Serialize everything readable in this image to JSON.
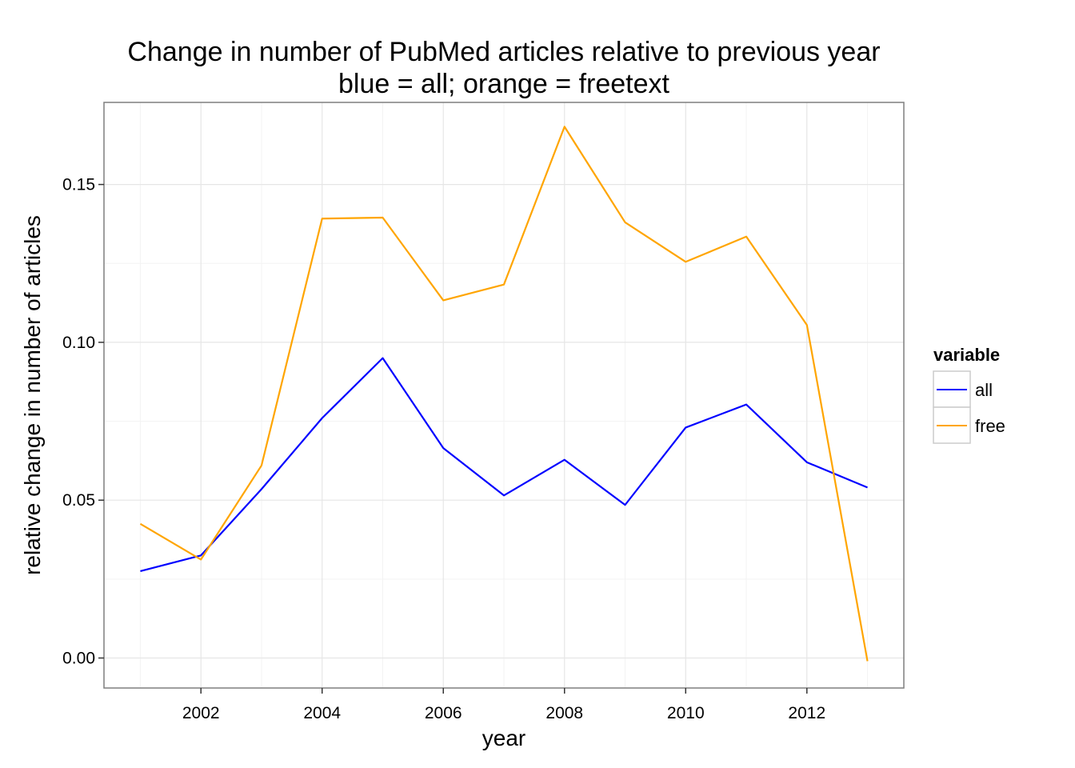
{
  "chart_data": {
    "type": "line",
    "title": "Change in number of PubMed articles relative to previous year",
    "subtitle": "blue = all; orange = freetext",
    "xlabel": "year",
    "ylabel": "relative change in number of articles",
    "x": [
      2001,
      2002,
      2003,
      2004,
      2005,
      2006,
      2007,
      2008,
      2009,
      2010,
      2011,
      2012,
      2013
    ],
    "xlim": [
      2000.4,
      2013.6
    ],
    "ylim": [
      -0.0095,
      0.176
    ],
    "xticks": [
      2002,
      2004,
      2006,
      2008,
      2010,
      2012
    ],
    "xtick_labels": [
      "2002",
      "2004",
      "2006",
      "2008",
      "2010",
      "2012"
    ],
    "yticks": [
      0.0,
      0.05,
      0.1,
      0.15
    ],
    "ytick_labels": [
      "0.00",
      "0.05",
      "0.10",
      "0.15"
    ],
    "grid": true,
    "legend": {
      "title": "variable",
      "position": "right"
    },
    "series": [
      {
        "name": "all",
        "color": "#0000ff",
        "values": [
          0.0275,
          0.0325,
          0.0535,
          0.076,
          0.095,
          0.0665,
          0.0515,
          0.0628,
          0.0485,
          0.073,
          0.0803,
          0.062,
          0.054
        ]
      },
      {
        "name": "free",
        "color": "#ffa500",
        "values": [
          0.0425,
          0.0312,
          0.061,
          0.1392,
          0.1395,
          0.1133,
          0.1183,
          0.1683,
          0.138,
          0.1255,
          0.1335,
          0.1055,
          -0.001
        ]
      }
    ]
  }
}
